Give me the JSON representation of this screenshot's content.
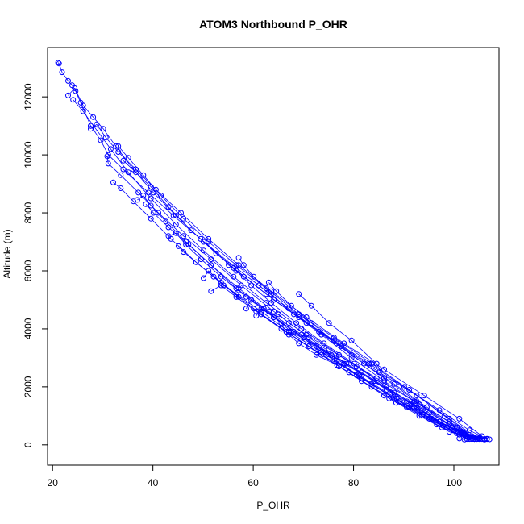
{
  "chart_data": {
    "type": "line",
    "title": "ATOM3 Northbound P_OHR",
    "xlabel": "P_OHR",
    "ylabel": "Altitude (m)",
    "xlim": [
      19,
      109
    ],
    "ylim": [
      -700,
      13700
    ],
    "xticks": [
      20,
      40,
      60,
      80,
      100
    ],
    "yticks": [
      0,
      2000,
      4000,
      6000,
      8000,
      10000,
      12000
    ],
    "grid": false,
    "legend": "none",
    "color": "#0000ff",
    "marker": "open-circle",
    "series": [
      {
        "x": [
          21.1,
          21.3,
          21.9,
          23.1,
          23.9,
          24.6,
          25.6,
          27.6,
          29.6,
          31.1,
          34.1,
          39.1,
          44.1,
          49.5,
          55.1,
          61.1,
          67.1,
          73.1,
          79.6,
          86.1,
          92.6,
          99.1,
          104.6
        ],
        "y": [
          13180,
          13150,
          12850,
          12550,
          12400,
          12200,
          11800,
          11000,
          10500,
          10000,
          9500,
          8700,
          7900,
          7100,
          6300,
          5500,
          4700,
          3900,
          3100,
          2300,
          1500,
          700,
          200
        ]
      },
      {
        "x": [
          23.1,
          24.4,
          26.1,
          28.1,
          30.1,
          32.6,
          36.1,
          40.1,
          44.6,
          50.1,
          56.1,
          62.6,
          69.1,
          76.1,
          83.1,
          90.1,
          97.1,
          103.1,
          106.6
        ],
        "y": [
          12050,
          12300,
          11700,
          11300,
          10900,
          10300,
          9500,
          8700,
          7900,
          7000,
          6100,
          5200,
          4400,
          3600,
          2800,
          2000,
          1200,
          500,
          200
        ]
      },
      {
        "x": [
          24.1,
          26.1,
          28.6,
          31.6,
          35.1,
          39.6,
          44.6,
          50.1,
          56.1,
          62.6,
          69.6,
          77.1,
          84.6,
          92.1,
          99.1,
          104.1
        ],
        "y": [
          11900,
          11500,
          10900,
          10200,
          9400,
          8500,
          7600,
          6700,
          5800,
          4900,
          4000,
          3100,
          2300,
          1500,
          800,
          250
        ]
      },
      {
        "x": [
          27.6,
          28.8,
          30.6,
          33.1,
          36.6,
          40.6,
          45.6,
          51.1,
          57.1,
          63.6,
          70.6,
          78.1,
          86.1,
          94.1,
          101.1,
          105.6
        ],
        "y": [
          10900,
          11050,
          10600,
          10100,
          9500,
          8800,
          8000,
          7100,
          6200,
          5300,
          4400,
          3500,
          2600,
          1700,
          900,
          300
        ]
      },
      {
        "x": [
          30.9,
          31.1,
          33.6,
          37.1,
          41.1,
          46.1,
          51.6,
          57.6,
          64.1,
          71.1,
          78.6,
          86.6,
          94.6,
          101.6,
          106.1
        ],
        "y": [
          9950,
          9700,
          9300,
          8700,
          8000,
          7200,
          6400,
          5500,
          4600,
          3700,
          2800,
          1900,
          1000,
          400,
          200
        ]
      },
      {
        "x": [
          32.1,
          33.6,
          36.1,
          39.6,
          43.6,
          48.6,
          54.1,
          60.1,
          66.6,
          73.6,
          81.1,
          88.6,
          95.1,
          101.1,
          104.1
        ],
        "y": [
          9050,
          8850,
          8400,
          7800,
          7100,
          6300,
          5500,
          4700,
          3900,
          3100,
          2400,
          1600,
          900,
          350,
          200
        ]
      },
      {
        "x": [
          36.9,
          38.1,
          39.6,
          42.6,
          46.6,
          51.6,
          57.1,
          63.1,
          69.6,
          76.6,
          84.1,
          91.6,
          98.1,
          103.1
        ],
        "y": [
          8450,
          8600,
          8250,
          7700,
          7000,
          6200,
          5400,
          4600,
          3800,
          3000,
          2200,
          1400,
          700,
          250
        ]
      },
      {
        "x": [
          33.1,
          35.1,
          38.1,
          41.6,
          46.1,
          51.1,
          56.6,
          62.6,
          69.1,
          76.1,
          83.6,
          91.1,
          98.1,
          103.6
        ],
        "y": [
          10300,
          9900,
          9300,
          8600,
          7800,
          7000,
          6200,
          5400,
          4500,
          3700,
          2800,
          1900,
          1000,
          300
        ]
      },
      {
        "x": [
          34.1,
          36.6,
          39.6,
          43.1,
          47.6,
          52.6,
          58.1,
          64.1,
          70.6,
          77.6,
          85.1,
          92.6,
          99.1,
          104.6
        ],
        "y": [
          9800,
          9400,
          8900,
          8200,
          7400,
          6600,
          5800,
          5000,
          4200,
          3400,
          2500,
          1700,
          900,
          250
        ]
      },
      {
        "x": [
          38.6,
          40.1,
          43.1,
          47.1,
          51.6,
          56.6,
          62.1,
          68.1,
          74.6,
          81.6,
          89.1,
          96.6,
          102.6
        ],
        "y": [
          8300,
          8000,
          7500,
          6900,
          6200,
          5400,
          4700,
          3900,
          3100,
          2300,
          1500,
          700,
          200
        ]
      },
      {
        "x": [
          43.1,
          44.6,
          46.6,
          49.6,
          53.6,
          58.6,
          64.1,
          70.1,
          76.6,
          83.6,
          91.1,
          98.6,
          103.6
        ],
        "y": [
          7200,
          7300,
          6900,
          6400,
          5800,
          5100,
          4400,
          3700,
          2900,
          2100,
          1300,
          600,
          200
        ]
      },
      {
        "x": [
          45.1,
          46.1,
          48.6,
          52.1,
          56.6,
          61.6,
          67.1,
          73.6,
          80.6,
          88.1,
          95.6,
          102.1,
          105.6
        ],
        "y": [
          6850,
          6650,
          6300,
          5800,
          5200,
          4600,
          3900,
          3200,
          2400,
          1600,
          900,
          350,
          200
        ]
      },
      {
        "x": [
          50.1,
          51.1,
          53.6,
          57.1,
          61.6,
          66.6,
          72.6,
          79.1,
          86.1,
          93.6,
          100.6,
          105.1
        ],
        "y": [
          5750,
          6000,
          5600,
          5100,
          4500,
          3900,
          3200,
          2500,
          1700,
          1000,
          400,
          200
        ]
      },
      {
        "x": [
          51.6,
          53.6,
          56.6,
          60.6,
          65.6,
          71.1,
          77.1,
          83.6,
          90.6,
          97.6,
          103.1
        ],
        "y": [
          5300,
          5500,
          5100,
          4600,
          4000,
          3400,
          2700,
          2000,
          1300,
          600,
          200
        ]
      },
      {
        "x": [
          55.1,
          56.6,
          59.6,
          63.6,
          68.6,
          74.1,
          80.1,
          86.6,
          93.6,
          100.1,
          104.6
        ],
        "y": [
          6200,
          6000,
          5500,
          4900,
          4200,
          3500,
          2800,
          2000,
          1200,
          500,
          250
        ]
      },
      {
        "x": [
          57.1,
          58.1,
          60.1,
          63.6,
          68.1,
          73.6,
          79.6,
          86.1,
          93.1,
          99.6,
          104.1
        ],
        "y": [
          6450,
          6200,
          5800,
          5200,
          4500,
          3800,
          3000,
          2200,
          1400,
          600,
          200
        ]
      },
      {
        "x": [
          58.6,
          59.6,
          62.1,
          65.6,
          70.1,
          75.6,
          81.6,
          88.1,
          95.1,
          101.6,
          106.1
        ],
        "y": [
          4700,
          5000,
          4700,
          4200,
          3700,
          3100,
          2500,
          1800,
          1100,
          450,
          200
        ]
      },
      {
        "x": [
          60.6,
          61.6,
          64.1,
          67.6,
          72.6,
          78.1,
          84.1,
          90.6,
          97.1,
          102.6,
          105.1
        ],
        "y": [
          4450,
          4700,
          4400,
          3900,
          3400,
          2800,
          2200,
          1500,
          800,
          300,
          200
        ]
      },
      {
        "x": [
          63.1,
          64.6,
          67.6,
          71.6,
          76.6,
          82.1,
          88.1,
          94.6,
          100.6,
          104.6
        ],
        "y": [
          5600,
          5300,
          4800,
          4200,
          3500,
          2800,
          2100,
          1300,
          600,
          200
        ]
      },
      {
        "x": [
          65.1,
          67.1,
          70.6,
          75.1,
          80.6,
          86.6,
          92.6,
          98.6,
          103.6
        ],
        "y": [
          4500,
          4200,
          3800,
          3300,
          2700,
          2000,
          1300,
          600,
          200
        ]
      },
      {
        "x": [
          67.1,
          69.1,
          72.6,
          76.7,
          81.6,
          87.1,
          93.1,
          99.1,
          104.1
        ],
        "y": [
          3800,
          3500,
          3100,
          2750,
          2200,
          1600,
          1000,
          450,
          200
        ]
      },
      {
        "x": [
          69.1,
          71.6,
          75.1,
          79.6,
          84.6,
          88.5,
          92.1,
          97.1,
          102.1,
          106.6
        ],
        "y": [
          5200,
          4800,
          4200,
          3600,
          2800,
          1450,
          1300,
          800,
          400,
          200
        ]
      },
      {
        "x": [
          101.1,
          102.1,
          103.1,
          104.1,
          105.1,
          106.1,
          106.6,
          107.1
        ],
        "y": [
          220,
          180,
          250,
          200,
          230,
          180,
          210,
          190
        ]
      }
    ]
  }
}
